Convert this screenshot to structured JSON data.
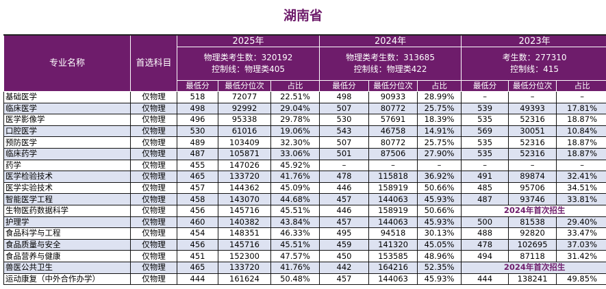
{
  "title": "湖南省",
  "header": {
    "major": "专业名称",
    "subject": "首选科目",
    "years": [
      {
        "year": "2025年",
        "line1": "物理类考生数：320192",
        "line2": "控制线：物理类405"
      },
      {
        "year": "2024年",
        "line1": "物理类考生数：313685",
        "line2": "控制线：物理类422"
      },
      {
        "year": "2023年",
        "line1": "考生数：277310",
        "line2": "控制线：415"
      }
    ],
    "sub": [
      "最低分",
      "最低分位次",
      "占比"
    ]
  },
  "rows": [
    {
      "name": "基础医学",
      "subject": "仅物理",
      "c": [
        "518",
        "72077",
        "22.51%",
        "498",
        "90933",
        "28.99%",
        "–",
        "–",
        "–"
      ]
    },
    {
      "name": "临床医学",
      "subject": "仅物理",
      "c": [
        "498",
        "92992",
        "29.04%",
        "507",
        "80772",
        "25.75%",
        "539",
        "49393",
        "17.81%"
      ]
    },
    {
      "name": "医学影像学",
      "subject": "仅物理",
      "c": [
        "496",
        "95338",
        "29.78%",
        "530",
        "57691",
        "18.39%",
        "535",
        "52316",
        "18.87%"
      ]
    },
    {
      "name": "口腔医学",
      "subject": "仅物理",
      "c": [
        "530",
        "61016",
        "19.06%",
        "543",
        "46758",
        "14.91%",
        "569",
        "30051",
        "10.84%"
      ]
    },
    {
      "name": "预防医学",
      "subject": "仅物理",
      "c": [
        "489",
        "103409",
        "32.30%",
        "507",
        "80772",
        "25.75%",
        "535",
        "52316",
        "18.87%"
      ]
    },
    {
      "name": "临床药学",
      "subject": "仅物理",
      "c": [
        "487",
        "105871",
        "33.06%",
        "501",
        "87506",
        "27.90%",
        "535",
        "52316",
        "18.87%"
      ]
    },
    {
      "name": "药学",
      "subject": "仅物理",
      "c": [
        "455",
        "147026",
        "45.92%",
        "–",
        "–",
        "–",
        "–",
        "–",
        "–"
      ]
    },
    {
      "name": "医学检验技术",
      "subject": "仅物理",
      "c": [
        "465",
        "133720",
        "41.76%",
        "478",
        "115818",
        "36.92%",
        "491",
        "89874",
        "32.41%"
      ]
    },
    {
      "name": "医学实验技术",
      "subject": "仅物理",
      "c": [
        "457",
        "144362",
        "45.09%",
        "446",
        "158919",
        "50.66%",
        "485",
        "95706",
        "34.51%"
      ]
    },
    {
      "name": "智能医学工程",
      "subject": "仅物理",
      "c": [
        "458",
        "143070",
        "44.68%",
        "457",
        "144063",
        "45.93%",
        "487",
        "93746",
        "33.81%"
      ]
    },
    {
      "name": "生物医药数据科学",
      "subject": "仅物理",
      "c": [
        "456",
        "145716",
        "45.51%",
        "446",
        "158919",
        "50.66%"
      ],
      "note": "2024年首次招生"
    },
    {
      "name": "护理学",
      "subject": "仅物理",
      "c": [
        "460",
        "140382",
        "43.84%",
        "457",
        "144063",
        "45.93%",
        "500",
        "81538",
        "29.40%"
      ]
    },
    {
      "name": "食品科学与工程",
      "subject": "仅物理",
      "c": [
        "454",
        "148351",
        "46.33%",
        "495",
        "94518",
        "30.13%",
        "488",
        "92820",
        "33.47%"
      ]
    },
    {
      "name": "食品质量与安全",
      "subject": "仅物理",
      "c": [
        "456",
        "145716",
        "45.51%",
        "459",
        "141320",
        "45.05%",
        "478",
        "102695",
        "37.03%"
      ]
    },
    {
      "name": "食品营养与健康",
      "subject": "仅物理",
      "c": [
        "451",
        "152300",
        "47.57%",
        "450",
        "153585",
        "48.96%",
        "494",
        "87118",
        "31.42%"
      ]
    },
    {
      "name": "兽医公共卫生",
      "subject": "仅物理",
      "c": [
        "465",
        "133720",
        "41.76%",
        "442",
        "164216",
        "52.35%"
      ],
      "note": "2024年首次招生"
    },
    {
      "name": "运动康复（中外合作办学）",
      "subject": "仅物理",
      "c": [
        "444",
        "161624",
        "50.48%",
        "457",
        "144063",
        "45.93%",
        "444",
        "138241",
        "49.85%"
      ]
    }
  ]
}
